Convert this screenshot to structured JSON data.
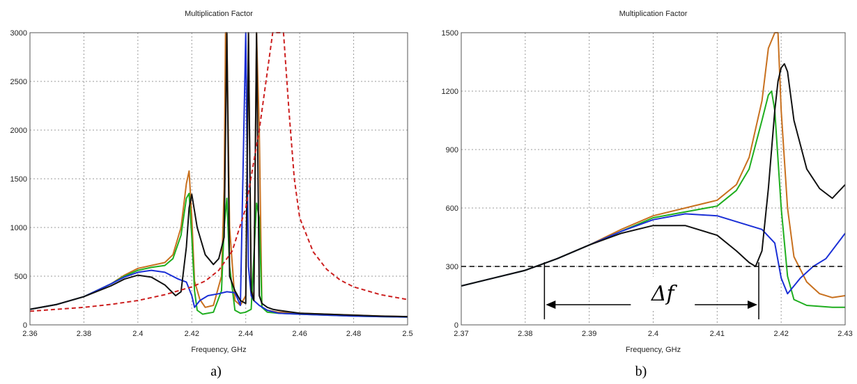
{
  "chart_data": [
    {
      "type": "line",
      "title": "Multiplication Factor",
      "xlabel": "Frequency, GHz",
      "ylabel": "",
      "panel_label": "a)",
      "xlim": [
        2.36,
        2.5
      ],
      "ylim": [
        0,
        3000
      ],
      "x_ticks": [
        "2.36",
        "2.38",
        "2.4",
        "2.42",
        "2.44",
        "2.46",
        "2.48",
        "2.5"
      ],
      "y_ticks": [
        "0",
        "500",
        "1000",
        "1500",
        "2000",
        "2500",
        "3000"
      ],
      "grid": true,
      "series": [
        {
          "color": "#c8701e",
          "dash": "solid",
          "x": [
            2.36,
            2.37,
            2.38,
            2.39,
            2.395,
            2.4,
            2.405,
            2.41,
            2.413,
            2.416,
            2.418,
            2.419,
            2.42,
            2.421,
            2.423,
            2.425,
            2.428,
            2.431,
            2.432,
            2.4325,
            2.433,
            2.434,
            2.436,
            2.438,
            2.44,
            2.441,
            2.442,
            2.443,
            2.444,
            2.445,
            2.446,
            2.448,
            2.452,
            2.46,
            2.47,
            2.48,
            2.49,
            2.5
          ],
          "y": [
            160,
            210,
            290,
            420,
            510,
            580,
            610,
            640,
            720,
            1000,
            1450,
            1580,
            1100,
            450,
            260,
            180,
            200,
            500,
            1400,
            3000,
            3000,
            1000,
            250,
            200,
            300,
            3000,
            400,
            250,
            3000,
            2000,
            180,
            150,
            130,
            120,
            110,
            100,
            90,
            85
          ]
        },
        {
          "color": "#1fae1f",
          "dash": "solid",
          "x": [
            2.36,
            2.37,
            2.38,
            2.39,
            2.395,
            2.4,
            2.405,
            2.41,
            2.413,
            2.416,
            2.418,
            2.419,
            2.42,
            2.421,
            2.422,
            2.424,
            2.428,
            2.431,
            2.432,
            2.433,
            2.434,
            2.436,
            2.438,
            2.44,
            2.442,
            2.444,
            2.445,
            2.446,
            2.448,
            2.452,
            2.46,
            2.47,
            2.48,
            2.49,
            2.5
          ],
          "y": [
            160,
            210,
            290,
            420,
            500,
            560,
            590,
            610,
            680,
            920,
            1300,
            1350,
            900,
            350,
            150,
            110,
            130,
            350,
            1000,
            1300,
            600,
            150,
            120,
            130,
            160,
            1250,
            1100,
            180,
            130,
            120,
            110,
            100,
            90,
            85,
            80
          ]
        },
        {
          "color": "#1a2fd6",
          "dash": "solid",
          "x": [
            2.36,
            2.37,
            2.38,
            2.39,
            2.395,
            2.4,
            2.405,
            2.41,
            2.415,
            2.418,
            2.42,
            2.421,
            2.423,
            2.426,
            2.43,
            2.433,
            2.436,
            2.438,
            2.44,
            2.441,
            2.442,
            2.443,
            2.445,
            2.448,
            2.452,
            2.46,
            2.47,
            2.48,
            2.49,
            2.5
          ],
          "y": [
            160,
            210,
            290,
            420,
            490,
            540,
            560,
            540,
            470,
            440,
            300,
            180,
            250,
            300,
            320,
            340,
            330,
            200,
            3000,
            600,
            300,
            250,
            200,
            150,
            120,
            110,
            100,
            90,
            85,
            80
          ]
        },
        {
          "color": "#111111",
          "dash": "solid",
          "x": [
            2.36,
            2.37,
            2.38,
            2.39,
            2.395,
            2.4,
            2.405,
            2.41,
            2.414,
            2.416,
            2.418,
            2.419,
            2.42,
            2.422,
            2.425,
            2.428,
            2.43,
            2.432,
            2.433,
            2.434,
            2.436,
            2.438,
            2.44,
            2.441,
            2.442,
            2.443,
            2.444,
            2.445,
            2.446,
            2.448,
            2.45,
            2.452,
            2.46,
            2.47,
            2.48,
            2.49,
            2.5
          ],
          "y": [
            160,
            210,
            290,
            400,
            470,
            510,
            490,
            410,
            300,
            340,
            800,
            1200,
            1340,
            1000,
            720,
            620,
            680,
            900,
            3000,
            500,
            350,
            250,
            220,
            3000,
            350,
            250,
            3000,
            300,
            220,
            180,
            160,
            150,
            120,
            110,
            100,
            90,
            85
          ]
        },
        {
          "color": "#cc1f1f",
          "dash": "dashed",
          "x": [
            2.36,
            2.37,
            2.38,
            2.39,
            2.4,
            2.41,
            2.42,
            2.425,
            2.43,
            2.435,
            2.44,
            2.445,
            2.45,
            2.452,
            2.454,
            2.456,
            2.458,
            2.46,
            2.465,
            2.47,
            2.475,
            2.48,
            2.49,
            2.5
          ],
          "y": [
            140,
            160,
            180,
            210,
            250,
            310,
            390,
            450,
            560,
            760,
            1200,
            2000,
            3000,
            3000,
            3000,
            2200,
            1500,
            1100,
            750,
            570,
            460,
            390,
            310,
            260
          ]
        }
      ]
    },
    {
      "type": "line",
      "title": "Multiplication Factor",
      "xlabel": "Frequency, GHz",
      "ylabel": "",
      "panel_label": "b)",
      "xlim": [
        2.37,
        2.43
      ],
      "ylim": [
        0,
        1500
      ],
      "x_ticks": [
        "2.37",
        "2.38",
        "2.39",
        "2.4",
        "2.41",
        "2.42",
        "2.43"
      ],
      "y_ticks": [
        "0",
        "300",
        "600",
        "900",
        "1200",
        "1500"
      ],
      "grid": true,
      "annotation": {
        "text": "Δf",
        "level": 300,
        "from": 2.383,
        "to": 2.4165
      },
      "series": [
        {
          "color": "#c8701e",
          "dash": "solid",
          "x": [
            2.37,
            2.375,
            2.38,
            2.385,
            2.39,
            2.395,
            2.4,
            2.405,
            2.41,
            2.413,
            2.415,
            2.417,
            2.418,
            2.419,
            2.4195,
            2.42,
            2.421,
            2.422,
            2.424,
            2.426,
            2.428,
            2.43
          ],
          "y": [
            200,
            240,
            280,
            340,
            410,
            490,
            560,
            600,
            640,
            720,
            860,
            1150,
            1420,
            1500,
            1500,
            1100,
            600,
            350,
            220,
            160,
            140,
            150
          ]
        },
        {
          "color": "#1fae1f",
          "dash": "solid",
          "x": [
            2.37,
            2.375,
            2.38,
            2.385,
            2.39,
            2.395,
            2.4,
            2.405,
            2.41,
            2.413,
            2.415,
            2.417,
            2.418,
            2.4185,
            2.419,
            2.42,
            2.421,
            2.422,
            2.424,
            2.426,
            2.428,
            2.43
          ],
          "y": [
            200,
            240,
            280,
            340,
            410,
            480,
            550,
            580,
            610,
            690,
            800,
            1050,
            1180,
            1200,
            1100,
            600,
            250,
            130,
            100,
            95,
            90,
            90
          ]
        },
        {
          "color": "#1a2fd6",
          "dash": "solid",
          "x": [
            2.37,
            2.375,
            2.38,
            2.385,
            2.39,
            2.395,
            2.4,
            2.405,
            2.41,
            2.414,
            2.417,
            2.419,
            2.42,
            2.421,
            2.423,
            2.425,
            2.427,
            2.43
          ],
          "y": [
            200,
            240,
            280,
            340,
            410,
            480,
            540,
            570,
            560,
            520,
            490,
            420,
            240,
            160,
            240,
            300,
            340,
            470
          ]
        },
        {
          "color": "#111111",
          "dash": "solid",
          "x": [
            2.37,
            2.375,
            2.38,
            2.385,
            2.39,
            2.395,
            2.4,
            2.405,
            2.41,
            2.413,
            2.415,
            2.416,
            2.417,
            2.418,
            2.419,
            2.4195,
            2.42,
            2.4205,
            2.421,
            2.422,
            2.424,
            2.426,
            2.428,
            2.43
          ],
          "y": [
            200,
            240,
            280,
            340,
            410,
            470,
            510,
            510,
            460,
            380,
            320,
            300,
            380,
            700,
            1100,
            1250,
            1320,
            1340,
            1300,
            1050,
            800,
            700,
            650,
            720
          ]
        }
      ]
    }
  ]
}
